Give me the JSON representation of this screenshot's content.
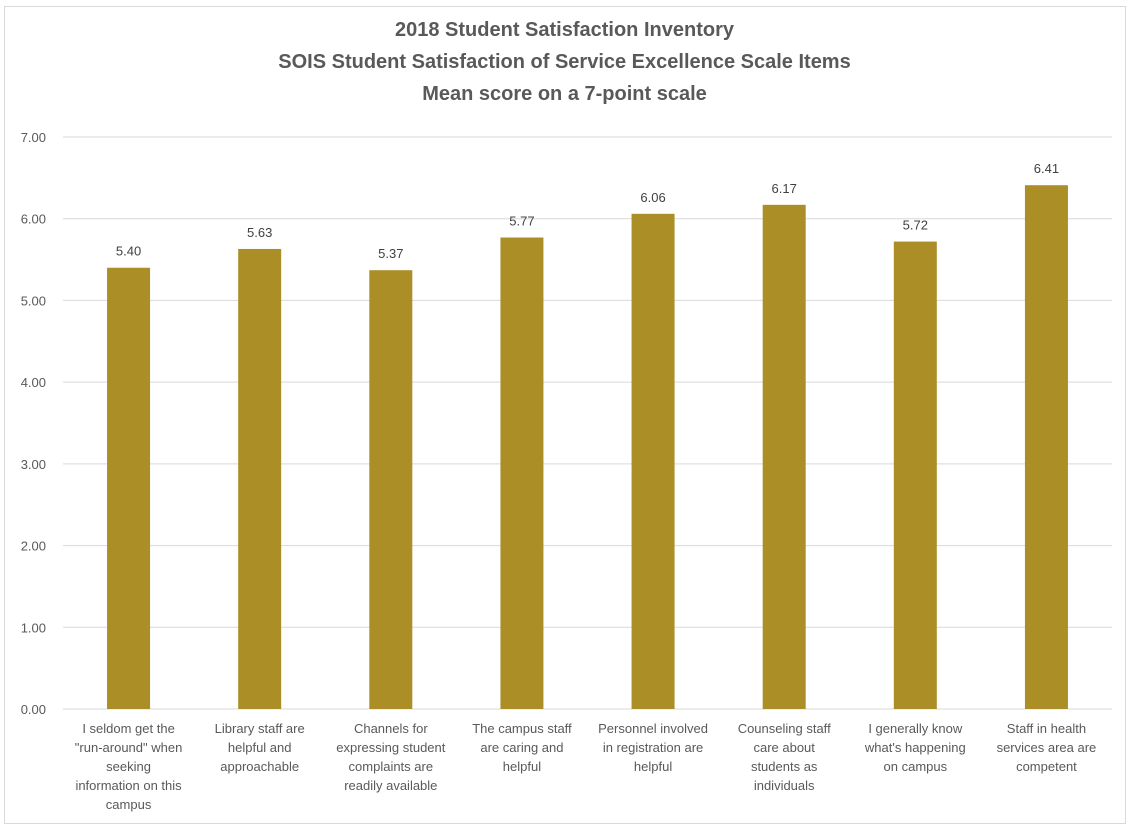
{
  "chart_data": {
    "type": "bar",
    "title": "2018 Student Satisfaction Inventory",
    "subtitle": "SOIS Student Satisfaction of Service Excellence Scale Items",
    "subtitle2": "Mean score on a 7-point scale",
    "categories": [
      [
        "I seldom get the",
        "\"run-around\" when",
        "seeking",
        "information on this",
        "campus"
      ],
      [
        "Library staff are",
        "helpful and",
        "approachable"
      ],
      [
        "Channels for",
        "expressing student",
        "complaints are",
        "readily available"
      ],
      [
        "The campus staff",
        "are caring and",
        "helpful"
      ],
      [
        "Personnel involved",
        "in registration are",
        "helpful"
      ],
      [
        "Counseling staff",
        "care about",
        "students as",
        "individuals"
      ],
      [
        "I generally know",
        "what's happening",
        "on campus"
      ],
      [
        "Staff in health",
        "services area are",
        "competent"
      ]
    ],
    "values": [
      5.4,
      5.63,
      5.37,
      5.77,
      6.06,
      6.17,
      5.72,
      6.41
    ],
    "data_labels": [
      "5.40",
      "5.63",
      "5.37",
      "5.77",
      "6.06",
      "6.17",
      "5.72",
      "6.41"
    ],
    "ylim": [
      0,
      7
    ],
    "yticks": [
      "0.00",
      "1.00",
      "2.00",
      "3.00",
      "4.00",
      "5.00",
      "6.00",
      "7.00"
    ],
    "ytick_values": [
      0,
      1,
      2,
      3,
      4,
      5,
      6,
      7
    ],
    "grid": true,
    "legend": "none",
    "bar_color": "#AB8F26",
    "gridline_color": "#d9d9d9"
  }
}
